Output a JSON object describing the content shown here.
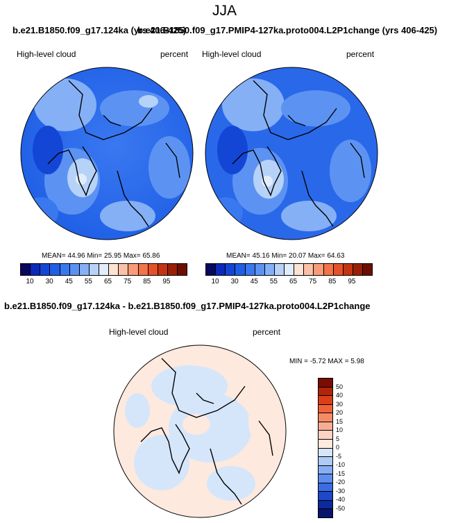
{
  "page": {
    "season": "JJA",
    "case1_title": "b.e21.B1850.f09_g17.124ka (yrs 406-425)",
    "case2_title": "b.e21.B1850.f09_g17.PMIP4-127ka.proto004.L2P1change (yrs 406-425)",
    "diff_title": "b.e21.B1850.f09_g17.124ka - b.e21.B1850.f09_g17.PMIP4-127ka.proto004.L2P1change"
  },
  "panels": [
    {
      "variable": "High-level cloud",
      "units": "percent",
      "stats": "MEAN=  44.96  Min=  25.95  Max=  65.86"
    },
    {
      "variable": "High-level cloud",
      "units": "percent",
      "stats": "MEAN=  45.16  Min=  20.07  Max=  64.63"
    }
  ],
  "diff_panel": {
    "variable": "High-level cloud",
    "units": "percent",
    "stats": "MIN =  -5.72  MAX =   5.98"
  },
  "colorbar_main": {
    "ticks": [
      "10",
      "30",
      "45",
      "55",
      "65",
      "75",
      "85",
      "95"
    ],
    "colors": [
      "#08085f",
      "#0b2ab8",
      "#1446d6",
      "#1f5fe6",
      "#3a78f0",
      "#5c93f3",
      "#85b0f6",
      "#b7d2f8",
      "#e1edfb",
      "#fde3d3",
      "#fbc1a6",
      "#f79b79",
      "#f27448",
      "#e4522a",
      "#c43412",
      "#992006",
      "#6c0f02"
    ]
  },
  "colorbar_diff": {
    "labels": [
      "50",
      "40",
      "30",
      "20",
      "15",
      "10",
      "5",
      "0",
      "-5",
      "-10",
      "-15",
      "-20",
      "-30",
      "-40",
      "-50"
    ],
    "colors": [
      "#7a0c02",
      "#b02508",
      "#dd3e1a",
      "#f0623a",
      "#f58a66",
      "#f7ad93",
      "#fbd3c2",
      "#fde9de",
      "#d5e6fb",
      "#aecaf6",
      "#86aef2",
      "#5d8eed",
      "#3a6de3",
      "#1d48c8",
      "#0b2a9c",
      "#08156a"
    ]
  }
}
